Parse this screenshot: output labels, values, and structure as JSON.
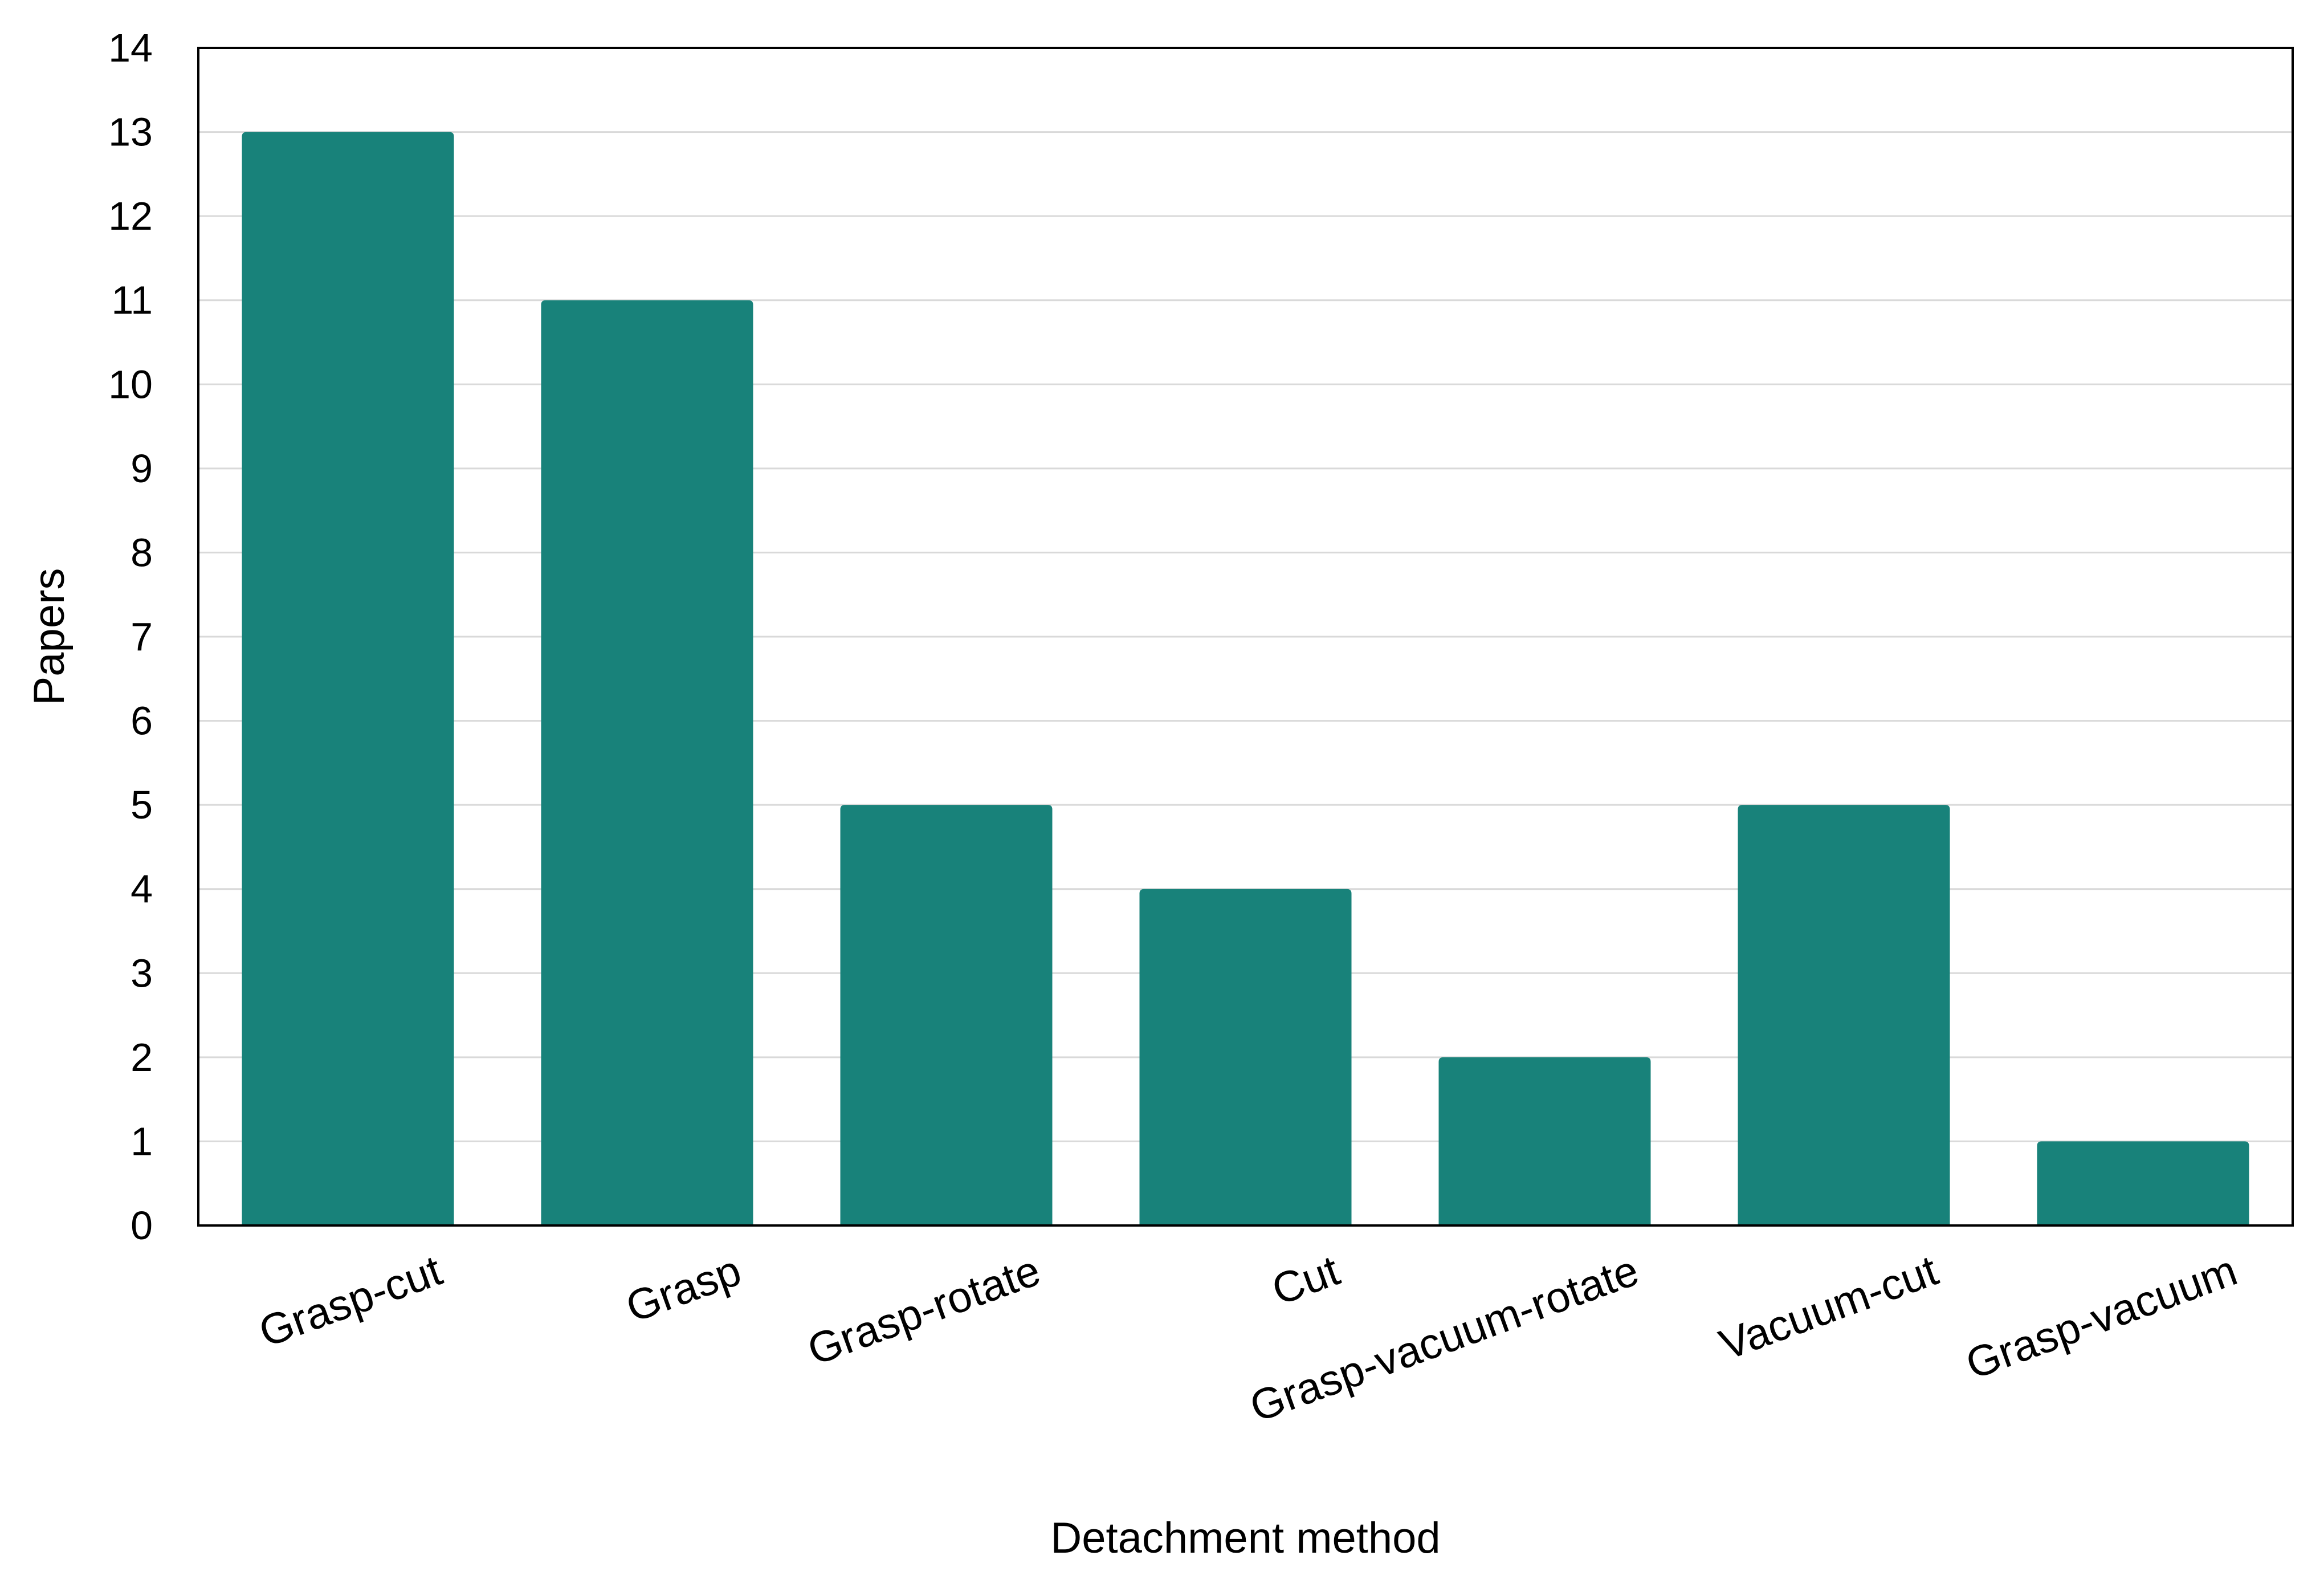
{
  "chart_data": {
    "type": "bar",
    "title": "",
    "xlabel": "Detachment method",
    "ylabel": "Papers",
    "categories": [
      "Grasp-cut",
      "Grasp",
      "Grasp-rotate",
      "Cut",
      "Grasp-vacuum-rotate",
      "Vacuum-cut",
      "Grasp-vacuum"
    ],
    "values": [
      13,
      11,
      5,
      4,
      2,
      5,
      1
    ],
    "ylim": [
      0,
      14
    ],
    "yticks": [
      0,
      1,
      2,
      3,
      4,
      5,
      6,
      7,
      8,
      9,
      10,
      11,
      12,
      13,
      14
    ],
    "grid": true,
    "legend": "none",
    "bar_color": "#18827A",
    "grid_color": "#D9D9D9",
    "axis_color": "#000000"
  }
}
